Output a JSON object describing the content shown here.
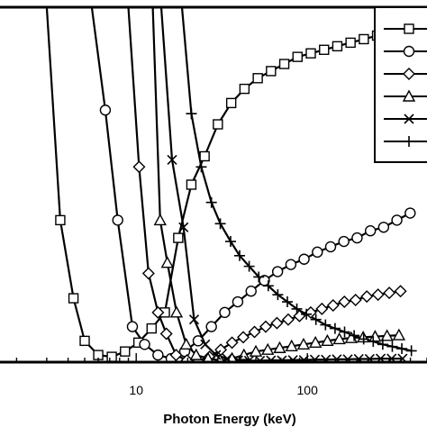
{
  "chart_data": {
    "type": "line",
    "title": "",
    "xlabel": "Photon Energy (keV)",
    "ylabel": "",
    "x_scale": "log",
    "xlim": [
      1.6,
      500
    ],
    "ylim": [
      0,
      1
    ],
    "x_ticks": [
      10,
      100
    ],
    "x_tick_labels": [
      "10",
      "100"
    ],
    "grid": false,
    "legend": "top-right",
    "series": [
      {
        "marker": "square",
        "x": [
          3.0,
          3.6,
          4.3,
          5.0,
          6.0,
          7.2,
          8.6,
          10.3,
          12.3,
          14.7,
          17.6,
          21.0,
          25.1,
          30.0,
          35.9,
          42.9,
          51.3,
          61.3,
          73.3,
          87.6,
          104.7,
          125.2,
          149.6,
          178.8,
          213.7,
          255.4,
          305.3,
          364.9
        ],
        "values": [
          1.0,
          0.4,
          0.18,
          0.06,
          0.02,
          0.015,
          0.03,
          0.055,
          0.095,
          0.14,
          0.35,
          0.5,
          0.58,
          0.67,
          0.73,
          0.77,
          0.8,
          0.82,
          0.84,
          0.86,
          0.87,
          0.88,
          0.89,
          0.9,
          0.91,
          0.92,
          0.93,
          0.94
        ]
      },
      {
        "marker": "circle",
        "x": [
          5.5,
          6.6,
          7.8,
          9.5,
          11.2,
          13.4,
          16.0,
          19.2,
          23.0,
          27.5,
          32.9,
          39.2,
          46.9,
          56.1,
          67.0,
          80.1,
          95.7,
          114.4,
          136.7,
          163.4,
          195.3,
          233.5,
          279.0,
          333.5,
          398.6
        ],
        "values": [
          1.0,
          0.71,
          0.4,
          0.1,
          0.05,
          0.02,
          0.01,
          0.03,
          0.06,
          0.1,
          0.14,
          0.17,
          0.2,
          0.23,
          0.255,
          0.275,
          0.29,
          0.31,
          0.325,
          0.34,
          0.35,
          0.37,
          0.38,
          0.4,
          0.42
        ]
      },
      {
        "marker": "diamond",
        "x": [
          9.0,
          10.4,
          11.8,
          13.4,
          15.0,
          17.1,
          19.8,
          23.0,
          26.8,
          31.2,
          36.3,
          42.2,
          49.1,
          57.1,
          66.4,
          77.3,
          89.9,
          104.6,
          121.6,
          141.4,
          164.5,
          191.3,
          222.5,
          258.8,
          301.0,
          350.1
        ],
        "values": [
          1.0,
          0.55,
          0.25,
          0.14,
          0.08,
          0.02,
          0.005,
          0.003,
          0.015,
          0.035,
          0.055,
          0.07,
          0.085,
          0.1,
          0.11,
          0.12,
          0.13,
          0.14,
          0.15,
          0.16,
          0.17,
          0.175,
          0.185,
          0.19,
          0.195,
          0.2
        ]
      },
      {
        "marker": "triangle",
        "x": [
          12.5,
          13.8,
          15.2,
          17.2,
          19.6,
          22.4,
          26.3,
          30.9,
          36.3,
          42.6,
          50.0,
          58.7,
          68.9,
          80.9,
          95.0,
          111.5,
          130.9,
          153.7,
          180.5,
          211.9,
          248.8,
          292.1,
          342.9
        ],
        "values": [
          1.0,
          0.4,
          0.28,
          0.14,
          0.05,
          0.02,
          0.01,
          0.005,
          0.01,
          0.02,
          0.03,
          0.035,
          0.04,
          0.045,
          0.05,
          0.055,
          0.06,
          0.065,
          0.068,
          0.07,
          0.072,
          0.074,
          0.076
        ]
      },
      {
        "marker": "x",
        "x": [
          14.0,
          16.2,
          18.9,
          21.8,
          25.3,
          29.3,
          34.0,
          39.4,
          45.6,
          52.9,
          61.3,
          71.0,
          82.3,
          95.4,
          110.6,
          128.2,
          148.6,
          172.2,
          199.6,
          231.3,
          268.1,
          310.7,
          360.1
        ],
        "values": [
          1.0,
          0.57,
          0.38,
          0.12,
          0.05,
          0.02,
          0.01,
          0.005,
          0.004,
          0.004,
          0.005,
          0.005,
          0.006,
          0.006,
          0.007,
          0.007,
          0.008,
          0.008,
          0.009,
          0.009,
          0.01,
          0.01,
          0.01
        ]
      },
      {
        "marker": "plus",
        "x": [
          18.5,
          21.0,
          24.0,
          27.5,
          31.0,
          35.6,
          40.2,
          45.7,
          52.0,
          59.1,
          67.2,
          76.4,
          86.8,
          98.7,
          112.2,
          127.6,
          145.1,
          165.0,
          187.6,
          213.3,
          242.5,
          275.7,
          313.5,
          356.4,
          405.2
        ],
        "values": [
          1.0,
          0.7,
          0.55,
          0.45,
          0.39,
          0.34,
          0.3,
          0.27,
          0.24,
          0.215,
          0.19,
          0.17,
          0.15,
          0.135,
          0.12,
          0.105,
          0.095,
          0.085,
          0.075,
          0.065,
          0.058,
          0.05,
          0.044,
          0.038,
          0.032
        ]
      }
    ]
  }
}
